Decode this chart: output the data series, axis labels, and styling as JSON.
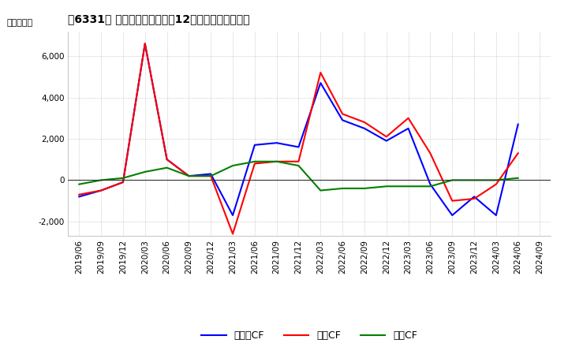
{
  "title": "、6331、 キャッシュフローの12か月移動合計の推移",
  "ylabel": "（百万円）",
  "dates": [
    "2019/06",
    "2019/09",
    "2019/12",
    "2020/03",
    "2020/06",
    "2020/09",
    "2020/12",
    "2021/03",
    "2021/06",
    "2021/09",
    "2021/12",
    "2022/03",
    "2022/06",
    "2022/09",
    "2022/12",
    "2023/03",
    "2023/06",
    "2023/09",
    "2023/12",
    "2024/03",
    "2024/06",
    "2024/09"
  ],
  "eigyo_cf": [
    -700,
    -500,
    -100,
    6600,
    1000,
    200,
    200,
    -2600,
    800,
    900,
    900,
    5200,
    3200,
    2800,
    2100,
    3000,
    1300,
    -1000,
    -900,
    -200,
    1300,
    null
  ],
  "toshi_cf": [
    -200,
    0,
    100,
    400,
    600,
    200,
    200,
    700,
    900,
    900,
    700,
    -500,
    -400,
    -400,
    -300,
    -300,
    -300,
    0,
    0,
    0,
    100,
    null
  ],
  "free_cf": [
    -800,
    -500,
    -100,
    6600,
    1000,
    200,
    300,
    -1700,
    1700,
    1800,
    1600,
    4700,
    2900,
    2500,
    1900,
    2500,
    -200,
    -1700,
    -800,
    -1700,
    2700,
    null
  ],
  "eigyo_color": "#ff0000",
  "toshi_color": "#008000",
  "free_color": "#0000ff",
  "ylim": [
    -2700,
    7200
  ],
  "yticks": [
    -2000,
    0,
    2000,
    4000,
    6000
  ],
  "bg_color": "#ffffff",
  "plot_bg_color": "#ffffff",
  "grid_color": "#aaaaaa",
  "legend_labels": [
    "営業CF",
    "投資CF",
    "フリーCF"
  ]
}
